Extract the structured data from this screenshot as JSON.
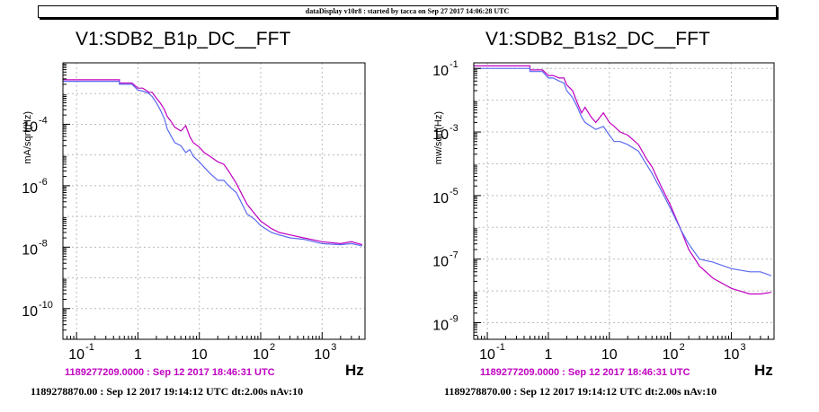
{
  "banner": "dataDisplay v10r8 : started by tacca on Sep 27 2017 14:06:28 UTC",
  "colors": {
    "reference": "#c000c0",
    "current": "#5a68f0",
    "grid": "#bbbbbb"
  },
  "chart_data": [
    {
      "type": "line",
      "title": "V1:SDB2_B1p_DC__FFT",
      "xlabel": "Hz",
      "ylabel": "mA/sqrt(Hz)",
      "xscale": "log",
      "yscale": "log",
      "xlim": [
        0.06,
        5000
      ],
      "ylim": [
        1e-11,
        0.01
      ],
      "grid": true,
      "x_ticks": [
        "10",
        "1",
        "10",
        "10",
        "10"
      ],
      "x_tick_exps": [
        "-1",
        "",
        "",
        "2",
        "3"
      ],
      "y_ticks": [
        "10",
        "10",
        "10",
        "10"
      ],
      "y_tick_exps": [
        "-10",
        "-8",
        "-6",
        "-4"
      ],
      "ref_stamp": "1189277209.0000 : Sep 12 2017 18:46:31 UTC",
      "cur_stamp": "1189278870.00 : Sep 12 2017 19:14:12 UTC dt:2.00s nAv:10",
      "series": [
        {
          "role": "reference",
          "x": [
            0.06,
            0.5,
            0.5,
            0.8,
            1.0,
            1.2,
            1.5,
            1.7,
            2.0,
            2.3,
            2.7,
            3.0,
            3.5,
            4.0,
            5.0,
            6.0,
            7.0,
            8.0,
            10,
            12,
            15,
            20,
            25,
            30,
            40,
            50,
            60,
            80,
            100,
            150,
            200,
            300,
            500,
            1000,
            2000,
            3000,
            4500
          ],
          "y": [
            0.0028,
            0.0028,
            0.0022,
            0.0022,
            0.0015,
            0.0015,
            0.0011,
            0.0011,
            0.0007,
            0.0005,
            0.0003,
            0.00018,
            0.00012,
            8e-05,
            6e-05,
            9e-05,
            4e-05,
            2.5e-05,
            1.8e-05,
            1.2e-05,
            9e-06,
            6e-06,
            5e-06,
            3e-06,
            1.2e-06,
            5e-07,
            2.5e-07,
            1.2e-07,
            7e-08,
            4e-08,
            3e-08,
            2.5e-08,
            2e-08,
            1.5e-08,
            1.3e-08,
            1.5e-08,
            1.2e-08
          ]
        },
        {
          "role": "current",
          "x": [
            0.06,
            0.5,
            0.5,
            0.8,
            1.0,
            1.2,
            1.5,
            1.7,
            2.0,
            2.3,
            2.7,
            3.0,
            3.5,
            4.0,
            5.0,
            6.0,
            7.0,
            8.0,
            10,
            12,
            15,
            20,
            25,
            30,
            40,
            50,
            60,
            80,
            100,
            150,
            200,
            300,
            500,
            1000,
            2000,
            3000,
            4500
          ],
          "y": [
            0.0025,
            0.0025,
            0.002,
            0.002,
            0.0013,
            0.0012,
            0.001,
            0.0008,
            0.0005,
            0.0003,
            0.00015,
            7e-05,
            4e-05,
            2.5e-05,
            2e-05,
            1.2e-05,
            1.5e-05,
            9e-06,
            6e-06,
            4e-06,
            2.5e-06,
            1.5e-06,
            1.5e-06,
            1e-06,
            6e-07,
            2.5e-07,
            1.2e-07,
            8e-08,
            5e-08,
            3e-08,
            2.5e-08,
            2e-08,
            1.8e-08,
            1.3e-08,
            1.2e-08,
            1.3e-08,
            1.1e-08
          ]
        }
      ]
    },
    {
      "type": "line",
      "title": "V1:SDB2_B1s2_DC__FFT",
      "xlabel": "Hz",
      "ylabel": "mw/sqrt(Hz)",
      "xscale": "log",
      "yscale": "log",
      "xlim": [
        0.06,
        5000
      ],
      "ylim": [
        3e-10,
        0.15
      ],
      "grid": true,
      "x_ticks": [
        "10",
        "1",
        "10",
        "10",
        "10"
      ],
      "x_tick_exps": [
        "-1",
        "",
        "",
        "2",
        "3"
      ],
      "y_ticks": [
        "10",
        "10",
        "10",
        "10",
        "10"
      ],
      "y_tick_exps": [
        "-9",
        "-7",
        "-5",
        "-3",
        "-1"
      ],
      "ref_stamp": "1189277209.0000 : Sep 12 2017 18:46:31 UTC",
      "cur_stamp": "1189278870.00 : Sep 12 2017 19:14:12 UTC dt:2.00s nAv:10",
      "series": [
        {
          "role": "reference",
          "x": [
            0.06,
            0.5,
            0.5,
            0.8,
            1.0,
            1.2,
            1.5,
            1.8,
            2.0,
            2.5,
            3.0,
            3.5,
            4.0,
            5.0,
            6.0,
            8.0,
            10,
            12,
            15,
            20,
            30,
            40,
            50,
            70,
            100,
            150,
            200,
            300,
            500,
            1000,
            2000,
            3000,
            4500
          ],
          "y": [
            0.12,
            0.12,
            0.09,
            0.09,
            0.06,
            0.06,
            0.05,
            0.05,
            0.03,
            0.02,
            0.008,
            0.004,
            0.006,
            0.003,
            0.002,
            0.004,
            0.002,
            0.0015,
            0.001,
            0.0008,
            0.0004,
            0.00015,
            8e-05,
            2e-05,
            5e-06,
            8e-07,
            2e-07,
            6e-08,
            2.5e-08,
            1.2e-08,
            8e-09,
            8e-09,
            9e-09
          ]
        },
        {
          "role": "current",
          "x": [
            0.06,
            0.5,
            0.5,
            0.8,
            1.0,
            1.2,
            1.5,
            1.8,
            2.0,
            2.5,
            3.0,
            3.5,
            4.0,
            5.0,
            6.0,
            8.0,
            10,
            12,
            15,
            20,
            30,
            40,
            50,
            70,
            100,
            150,
            200,
            300,
            500,
            1000,
            2000,
            3000,
            4500
          ],
          "y": [
            0.1,
            0.1,
            0.08,
            0.08,
            0.05,
            0.05,
            0.04,
            0.035,
            0.02,
            0.012,
            0.006,
            0.003,
            0.002,
            0.0015,
            0.0012,
            0.0015,
            0.0008,
            0.0005,
            0.0005,
            0.0004,
            0.00025,
            0.0001,
            5e-05,
            1.5e-05,
            4e-06,
            8e-07,
            3e-07,
            1e-07,
            8e-08,
            5e-08,
            4e-08,
            4e-08,
            3e-08
          ]
        }
      ]
    }
  ]
}
